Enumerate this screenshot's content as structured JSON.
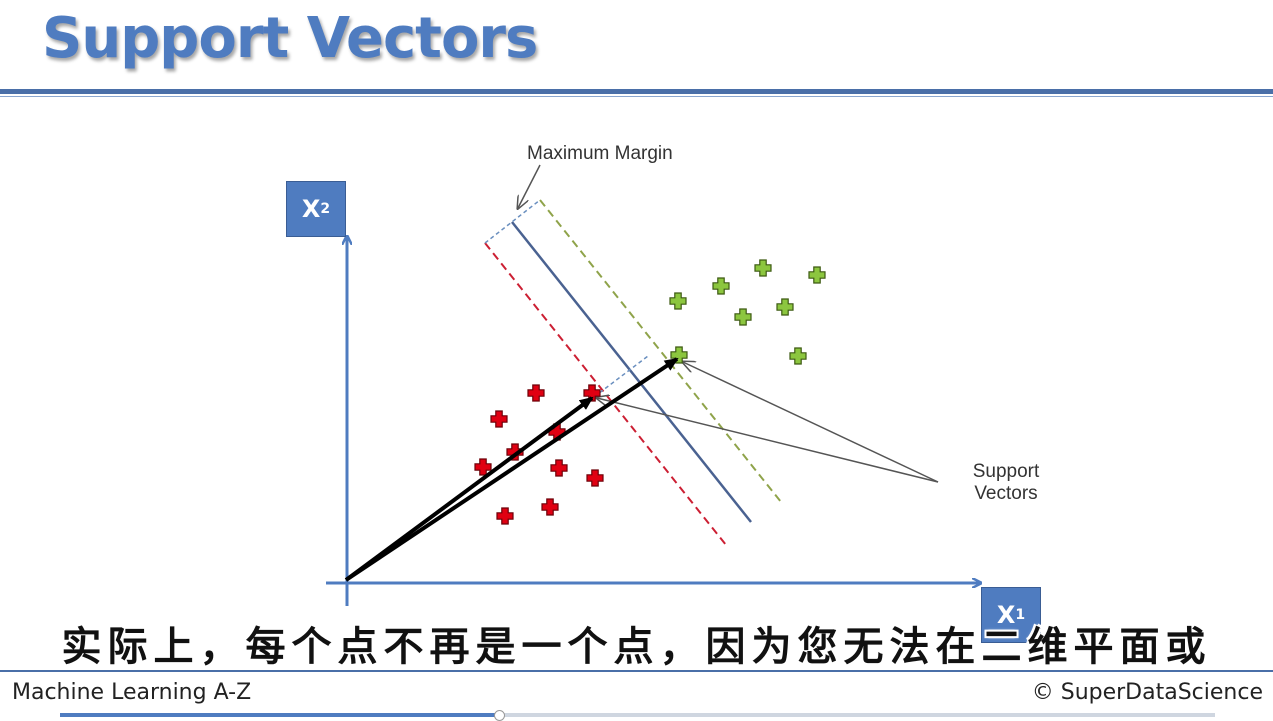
{
  "slide": {
    "title": "Support Vectors",
    "axis_x_label": "X",
    "axis_x_sub": "1",
    "axis_y_label": "X",
    "axis_y_sub": "2",
    "annotation_margin": "Maximum Margin",
    "annotation_support_line1": "Support",
    "annotation_support_line2": "Vectors"
  },
  "subtitle": "实际上，每个点不再是一个点，因为您无法在二维平面或",
  "footer": {
    "course": "Machine Learning A-Z",
    "copyright": "© SuperDataScience"
  },
  "player": {
    "progress_fraction": 0.38
  },
  "colors": {
    "title": "#4f7cc0",
    "axis": "#4f7cc0",
    "hyperplane": "#4a6291",
    "margin_red": "#cc1f33",
    "margin_green": "#8fa34a",
    "class_red": "#e00012",
    "class_green": "#8cc63f",
    "vector": "#000000"
  },
  "icons": {
    "red_points": "plus-icon",
    "green_points": "plus-icon"
  }
}
